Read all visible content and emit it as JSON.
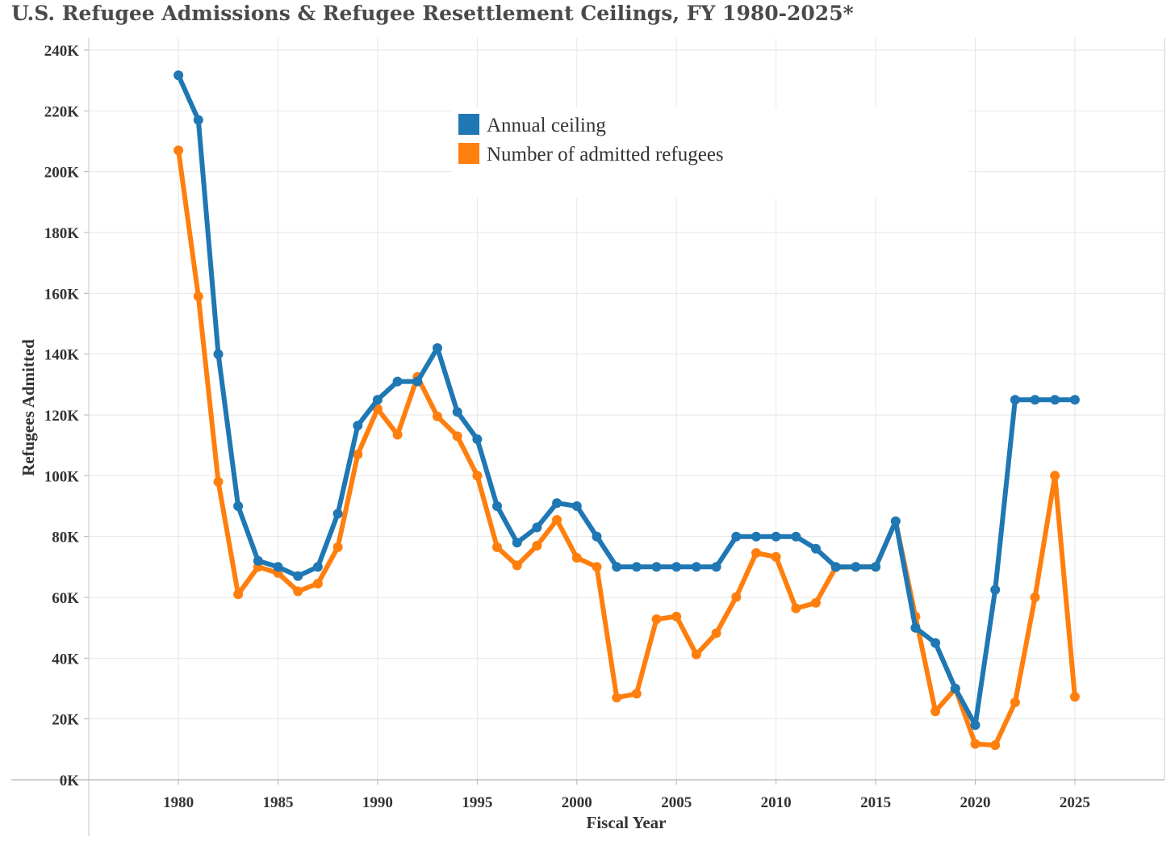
{
  "chart_data": {
    "type": "line",
    "title": "U.S. Refugee Admissions & Refugee Resettlement Ceilings, FY 1980-2025*",
    "xlabel": "Fiscal Year",
    "ylabel": "Refugees Admitted",
    "x": [
      1980,
      1981,
      1982,
      1983,
      1984,
      1985,
      1986,
      1987,
      1988,
      1989,
      1990,
      1991,
      1992,
      1993,
      1994,
      1995,
      1996,
      1997,
      1998,
      1999,
      2000,
      2001,
      2002,
      2003,
      2004,
      2005,
      2006,
      2007,
      2008,
      2009,
      2010,
      2011,
      2012,
      2013,
      2014,
      2015,
      2016,
      2017,
      2018,
      2019,
      2020,
      2021,
      2022,
      2023,
      2024,
      2025
    ],
    "xlim": [
      1975.5,
      2029.5
    ],
    "ylim": [
      0,
      240000
    ],
    "xticks": [
      1980,
      1985,
      1990,
      1995,
      2000,
      2005,
      2010,
      2015,
      2020,
      2025
    ],
    "xtick_labels": [
      "1980",
      "1985",
      "1990",
      "1995",
      "2000",
      "2005",
      "2010",
      "2015",
      "2020",
      "2025"
    ],
    "yticks": [
      0,
      20000,
      40000,
      60000,
      80000,
      100000,
      120000,
      140000,
      160000,
      180000,
      200000,
      220000,
      240000
    ],
    "ytick_labels": [
      "0K",
      "20K",
      "40K",
      "60K",
      "80K",
      "100K",
      "120K",
      "140K",
      "160K",
      "180K",
      "200K",
      "220K",
      "240K"
    ],
    "grid": true,
    "legend_position": "top-center",
    "series": [
      {
        "name": "Annual ceiling",
        "color": "#1f77b4",
        "values": [
          231700,
          217000,
          140000,
          90000,
          72000,
          70000,
          67000,
          70000,
          87500,
          116500,
          125000,
          131000,
          131000,
          142000,
          121000,
          112000,
          90000,
          78000,
          83000,
          91000,
          90000,
          80000,
          70000,
          70000,
          70000,
          70000,
          70000,
          70000,
          80000,
          80000,
          80000,
          80000,
          76000,
          70000,
          70000,
          70000,
          85000,
          50000,
          45000,
          30000,
          18000,
          62500,
          125000,
          125000,
          125000,
          125000
        ]
      },
      {
        "name": "Number of admitted refugees",
        "color": "#ff7f0e",
        "values": [
          207000,
          159000,
          98000,
          61000,
          70000,
          68000,
          62000,
          64500,
          76500,
          107000,
          122000,
          113500,
          132500,
          119500,
          113000,
          100000,
          76500,
          70500,
          77000,
          85500,
          73000,
          70000,
          27000,
          28300,
          52800,
          53700,
          41200,
          48200,
          60100,
          74600,
          73300,
          56400,
          58200,
          69900,
          70000,
          70000,
          85000,
          53700,
          22500,
          30000,
          11800,
          11400,
          25500,
          60000,
          100000,
          27300
        ]
      }
    ]
  }
}
